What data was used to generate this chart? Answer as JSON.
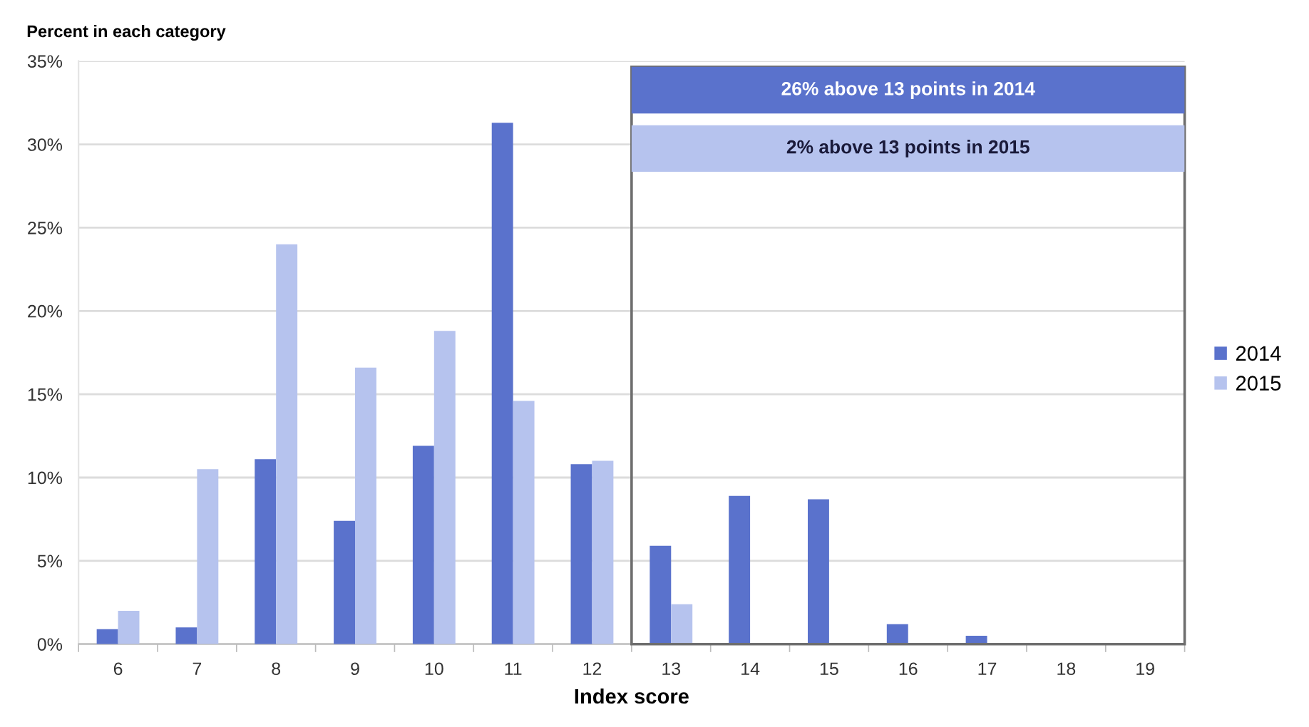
{
  "chart_data": {
    "type": "bar",
    "ylabel": "Percent in each category",
    "xlabel": "Index score",
    "categories": [
      "6",
      "7",
      "8",
      "9",
      "10",
      "11",
      "12",
      "13",
      "14",
      "15",
      "16",
      "17",
      "18",
      "19"
    ],
    "series": [
      {
        "name": "2014",
        "color": "#5a72cc",
        "values": [
          0.9,
          1.0,
          11.1,
          7.4,
          11.9,
          31.3,
          10.8,
          5.9,
          8.9,
          8.7,
          1.2,
          0.5,
          0,
          0
        ]
      },
      {
        "name": "2015",
        "color": "#b6c3ee",
        "values": [
          2.0,
          10.5,
          24.0,
          16.6,
          18.8,
          14.6,
          11.0,
          2.4,
          0,
          0,
          0,
          0,
          0,
          0
        ]
      }
    ],
    "ylim": [
      0,
      35
    ],
    "yticks": [
      {
        "value": 0,
        "label": "0%"
      },
      {
        "value": 5,
        "label": "5%"
      },
      {
        "value": 10,
        "label": "10%"
      },
      {
        "value": 15,
        "label": "15%"
      },
      {
        "value": 20,
        "label": "20%"
      },
      {
        "value": 25,
        "label": "25%"
      },
      {
        "value": 30,
        "label": "30%"
      },
      {
        "value": 35,
        "label": "35%"
      }
    ],
    "grid": "y",
    "legend": "right",
    "annotations": [
      "26% above 13 points in 2014",
      "2% above 13 points in 2015"
    ]
  }
}
